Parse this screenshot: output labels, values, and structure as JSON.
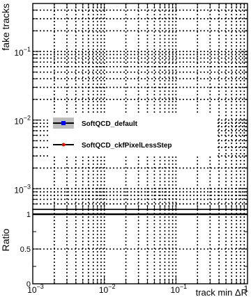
{
  "chart_data": [
    {
      "type": "line",
      "panel": "top",
      "ylabel": "fake tracks",
      "yscale": "log",
      "xscale": "log",
      "xlim": [
        0.001,
        1
      ],
      "ylim": [
        0.0005,
        0.5
      ],
      "yticks": [
        {
          "value": 0.1,
          "base": "10",
          "exp": "-1"
        },
        {
          "value": 0.01,
          "base": "10",
          "exp": "-2"
        },
        {
          "value": 0.001,
          "base": "10",
          "exp": "-3"
        }
      ],
      "grid": true,
      "legend_position": "center-left",
      "series": [
        {
          "name": "SoftQCD_default",
          "color": "#0000ff",
          "values": []
        },
        {
          "name": "SoftQCD_ckfPixelLessStep",
          "color": "#ff0000",
          "values": []
        }
      ]
    },
    {
      "type": "line",
      "panel": "bottom",
      "ylabel": "Ratio",
      "xlabel": "track min ΔR",
      "xscale": "log",
      "xlim": [
        0.001,
        1
      ],
      "ylim": [
        0,
        1.07
      ],
      "yticks": [
        {
          "value": 0,
          "label": "0"
        },
        {
          "value": 0.5,
          "label": "0.5"
        },
        {
          "value": 1,
          "label": "1"
        }
      ],
      "xticks": [
        {
          "value": 0.001,
          "base": "10",
          "exp": "-3"
        },
        {
          "value": 0.01,
          "base": "10",
          "exp": "-2"
        },
        {
          "value": 0.1,
          "base": "10",
          "exp": "-1"
        },
        {
          "value": 1,
          "base": "",
          "exp": "",
          "label": "1"
        }
      ],
      "grid": true,
      "reference_line": 1,
      "series": []
    }
  ],
  "legend": {
    "entries": [
      {
        "label": "SoftQCD_default",
        "line_color": "#000000",
        "marker_color": "#0000ff",
        "band": true
      },
      {
        "label": "SoftQCD_ckfPixelLessStep",
        "line_color": "#000000",
        "marker_color": "#ff0000",
        "band": false
      }
    ]
  }
}
